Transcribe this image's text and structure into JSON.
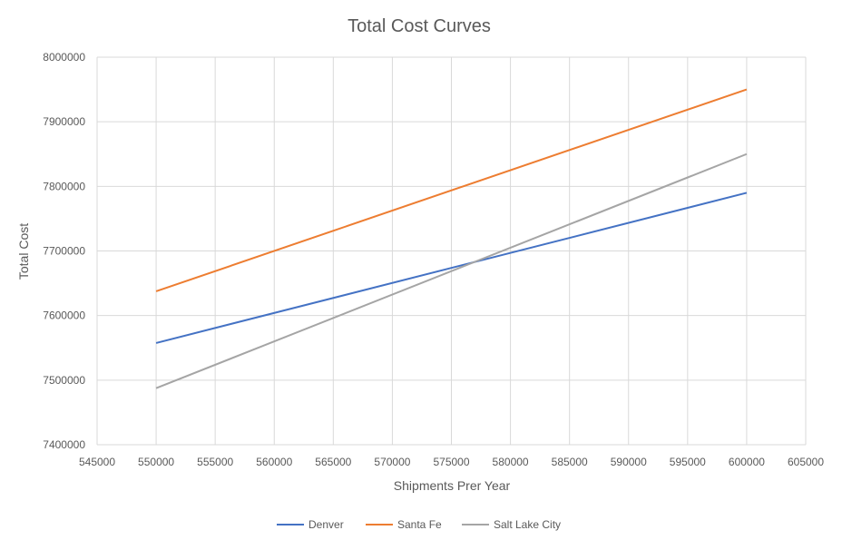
{
  "chart_data": {
    "type": "line",
    "title": "Total Cost Curves",
    "xlabel": "Shipments Prer Year",
    "ylabel": "Total Cost",
    "xlim": [
      545000,
      605000
    ],
    "ylim": [
      7400000,
      8000000
    ],
    "xticks": [
      545000,
      550000,
      555000,
      560000,
      565000,
      570000,
      575000,
      580000,
      585000,
      590000,
      595000,
      600000,
      605000
    ],
    "yticks": [
      7400000,
      7500000,
      7600000,
      7700000,
      7800000,
      7900000,
      8000000
    ],
    "grid": true,
    "legend_position": "bottom",
    "series": [
      {
        "name": "Denver",
        "color": "#4472C4",
        "x": [
          550000,
          600000
        ],
        "y": [
          7557500,
          7790000
        ]
      },
      {
        "name": "Santa Fe",
        "color": "#ED7D31",
        "x": [
          550000,
          600000
        ],
        "y": [
          7637500,
          7950000
        ]
      },
      {
        "name": "Salt Lake City",
        "color": "#A5A5A5",
        "x": [
          550000,
          600000
        ],
        "y": [
          7487500,
          7850000
        ]
      }
    ]
  }
}
